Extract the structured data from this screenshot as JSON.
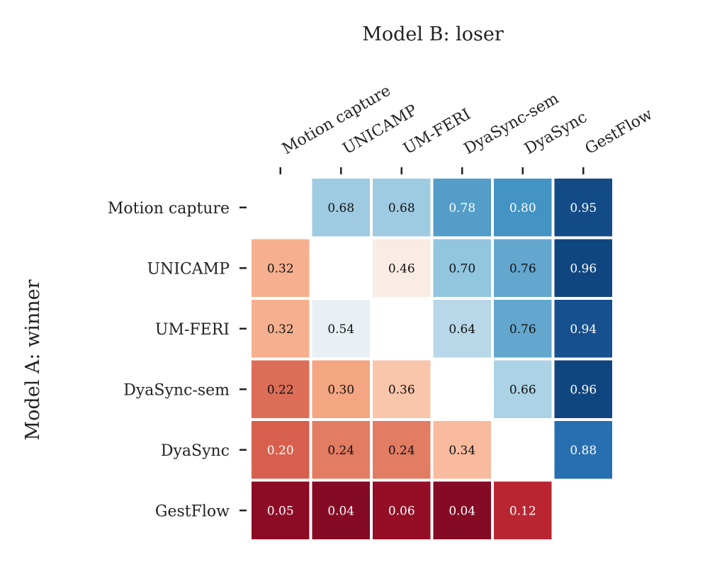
{
  "chart_data": {
    "type": "heatmap",
    "title": "Model B: loser",
    "ylabel": "Model A: winner",
    "x_categories": [
      "Motion capture",
      "UNICAMP",
      "UM-FERI",
      "DyaSync-sem",
      "DyaSync",
      "GestFlow"
    ],
    "y_categories": [
      "Motion capture",
      "UNICAMP",
      "UM-FERI",
      "DyaSync-sem",
      "DyaSync",
      "GestFlow"
    ],
    "values": [
      [
        null,
        0.68,
        0.68,
        0.78,
        0.8,
        0.95
      ],
      [
        0.32,
        null,
        0.46,
        0.7,
        0.76,
        0.96
      ],
      [
        0.32,
        0.54,
        null,
        0.64,
        0.76,
        0.94
      ],
      [
        0.22,
        0.3,
        0.36,
        null,
        0.66,
        0.96
      ],
      [
        0.2,
        0.24,
        0.24,
        0.34,
        null,
        0.88
      ],
      [
        0.05,
        0.04,
        0.06,
        0.04,
        0.12,
        null
      ]
    ],
    "labels": [
      [
        null,
        "0.68",
        "0.68",
        "0.78",
        "0.80",
        "0.95"
      ],
      [
        "0.32",
        null,
        "0.46",
        "0.70",
        "0.76",
        "0.96"
      ],
      [
        "0.32",
        "0.54",
        null,
        "0.64",
        "0.76",
        "0.94"
      ],
      [
        "0.22",
        "0.30",
        "0.36",
        null,
        "0.66",
        "0.96"
      ],
      [
        "0.20",
        "0.24",
        "0.24",
        "0.34",
        null,
        "0.88"
      ],
      [
        "0.05",
        "0.04",
        "0.06",
        "0.04",
        "0.12",
        null
      ]
    ],
    "colormap": "RdBu",
    "value_range": [
      0,
      1
    ],
    "x_axis_position": "top",
    "tick_label_rotation_deg": 30,
    "colorbar": false,
    "grid": false
  }
}
